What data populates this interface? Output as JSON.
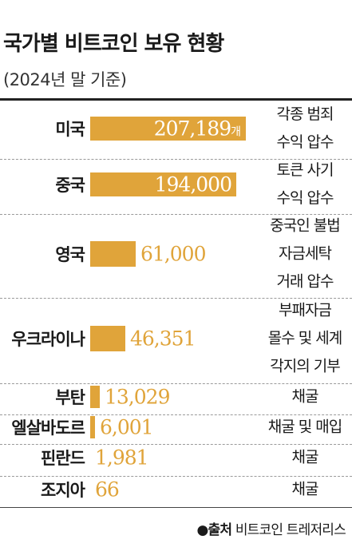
{
  "header": {
    "title": "국가별 비트코인 보유 현황",
    "subtitle": "(2024년 말 기준)"
  },
  "source": {
    "label": "●출처",
    "text": "비트코인 트레저리스"
  },
  "chart_data": {
    "type": "bar",
    "orientation": "horizontal",
    "title": "국가별 비트코인 보유 현황",
    "subtitle": "(2024년 말 기준)",
    "unit": "개",
    "categories": [
      "미국",
      "중국",
      "영국",
      "우크라이나",
      "부탄",
      "엘살바도르",
      "핀란드",
      "조지아"
    ],
    "series": [
      {
        "values": [
          207189,
          194000,
          61000,
          46351,
          13029,
          6001,
          1981,
          66
        ]
      }
    ],
    "value_labels": [
      "207,189",
      "194,000",
      "61,000",
      "46,351",
      "13,029",
      "6,001",
      "1,981",
      "66"
    ],
    "acquisition_method": [
      [
        "각종 범죄",
        "수익 압수"
      ],
      [
        "토큰 사기",
        "수익 압수"
      ],
      [
        "중국인 불법",
        "자금세탁",
        "거래 압수"
      ],
      [
        "부패자금",
        "몰수 및 세계",
        "각지의 기부"
      ],
      [
        "채굴"
      ],
      [
        "채굴 및 매입"
      ],
      [
        "채굴"
      ],
      [
        "채굴"
      ]
    ],
    "bar_color": "#e0a43a",
    "xlim": [
      0,
      207189
    ],
    "grid": false,
    "legend": "none"
  }
}
